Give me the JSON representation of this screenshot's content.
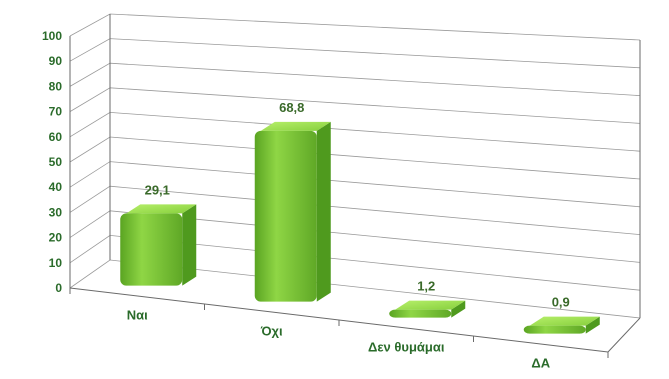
{
  "chart_data": {
    "type": "bar",
    "title": "",
    "xlabel": "",
    "ylabel": "",
    "categories": [
      "Ναι",
      "Όχι",
      "Δεν θυμάμαι",
      "ΔΑ"
    ],
    "values": [
      29.1,
      68.8,
      1.2,
      0.9
    ],
    "data_labels": [
      "29,1",
      "68,8",
      "1,2",
      "0,9"
    ],
    "ylim": [
      0,
      100
    ],
    "yticks": [
      "0",
      "10",
      "20",
      "30",
      "40",
      "50",
      "60",
      "70",
      "80",
      "90",
      "100"
    ],
    "grid": true,
    "legend": "none",
    "bar_color": "#7cc832",
    "bar_top_color": "#9fe34c",
    "bar_side_color": "#4f9a1e",
    "label_color": "#2a6b2a"
  }
}
